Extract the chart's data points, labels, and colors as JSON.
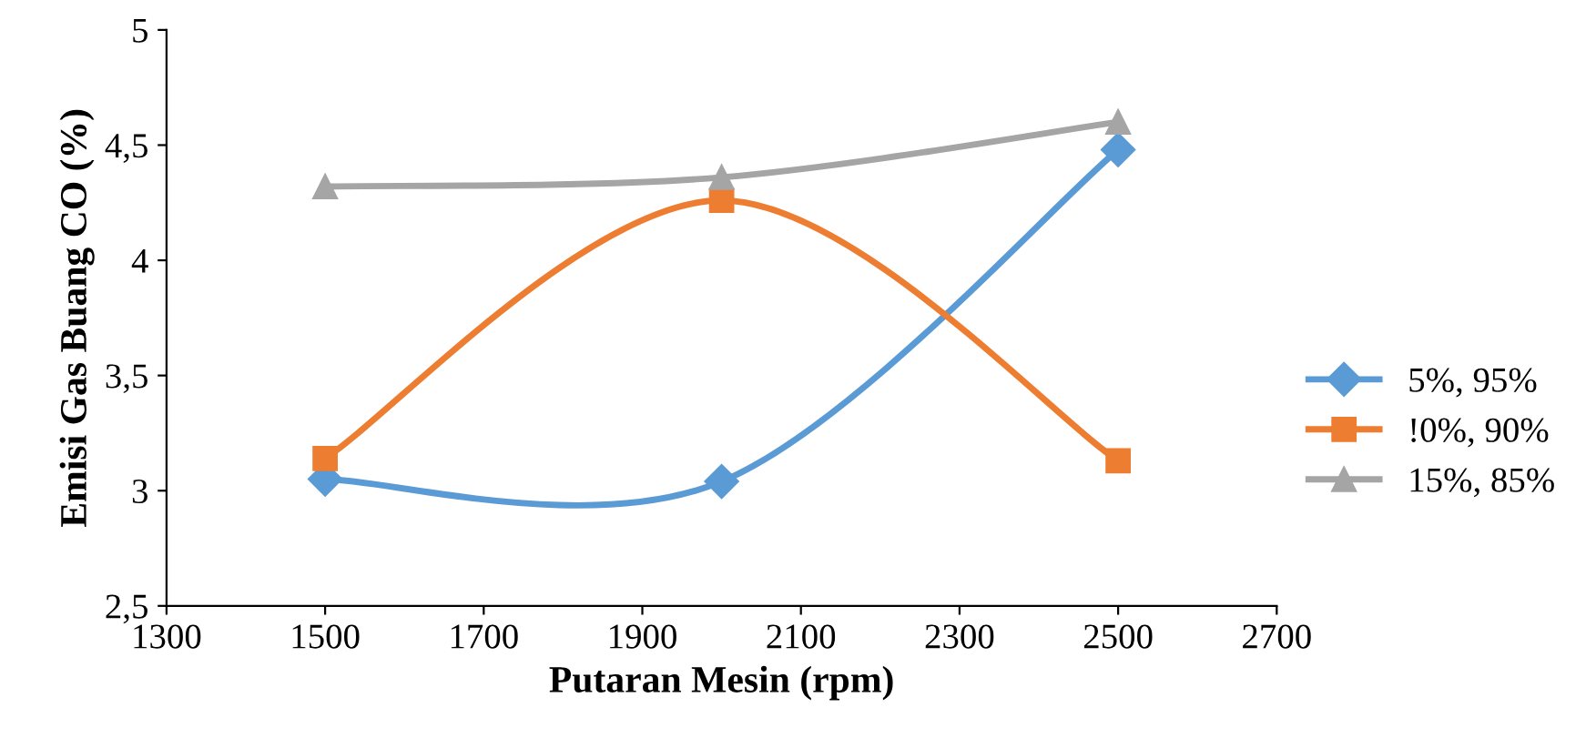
{
  "chart_data": {
    "type": "line",
    "xlabel": "Putaran Mesin (rpm)",
    "ylabel": "Emisi Gas Buang CO (%)",
    "x": [
      1500,
      2000,
      2500
    ],
    "series": [
      {
        "name": "5%, 95%",
        "color": "#5b9bd5",
        "marker": "diamond",
        "values": [
          3.05,
          3.04,
          4.48
        ]
      },
      {
        "name": "!0%, 90%",
        "color": "#ed7d31",
        "marker": "square",
        "values": [
          3.14,
          4.26,
          3.13
        ]
      },
      {
        "name": "15%, 85%",
        "color": "#a5a5a5",
        "marker": "triangle",
        "values": [
          4.32,
          4.36,
          4.6
        ]
      }
    ],
    "xlim": [
      1300,
      2700
    ],
    "xticks": [
      1300,
      1500,
      1700,
      1900,
      2100,
      2300,
      2500,
      2700
    ],
    "ylim": [
      2.5,
      5
    ],
    "yticks": [
      {
        "value": 2.5,
        "label": "2,5"
      },
      3,
      {
        "value": 3.5,
        "label": "3,5"
      },
      4,
      {
        "value": 4.5,
        "label": "4,5"
      },
      5
    ],
    "grid": false,
    "legend": "right",
    "line_style": "solid"
  }
}
